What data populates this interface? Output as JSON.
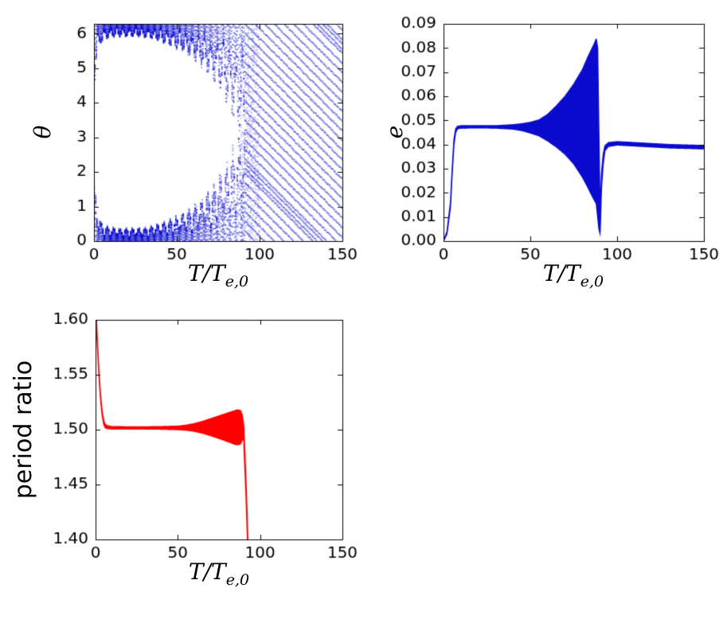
{
  "figure": {
    "background": "#ffffff"
  },
  "chart_data": [
    {
      "id": "theta-vs-time",
      "type": "scatter",
      "xlabel_main": "T/T",
      "xlabel_sub": "e,0",
      "ylabel": "θ",
      "xlim": [
        0,
        150
      ],
      "ylim": [
        0,
        6.2832
      ],
      "xticks": [
        0,
        50,
        100,
        150
      ],
      "xticklabels": [
        "0",
        "50",
        "100",
        "150"
      ],
      "yticks": [
        0,
        1,
        2,
        3,
        4,
        5,
        6
      ],
      "yticklabels": [
        "0",
        "1",
        "2",
        "3",
        "4",
        "5",
        "6"
      ],
      "color": "#0b0bd0",
      "series_note": "resonant angle librates about 0 (mod 2pi): solid bands at 0 and 2pi whose amplitude grows to pi near T=90, then the angle circulates producing a diagonal striped pattern for T>91",
      "libration_envelope": {
        "x": [
          0,
          1,
          2,
          3,
          4,
          6,
          10,
          15,
          20,
          25,
          30,
          35,
          40,
          45,
          50,
          55,
          60,
          65,
          70,
          74,
          78,
          81,
          84,
          86,
          88,
          89.5,
          91
        ],
        "amplitude": [
          1.7,
          1.3,
          0.95,
          0.7,
          0.55,
          0.44,
          0.38,
          0.355,
          0.35,
          0.355,
          0.37,
          0.42,
          0.5,
          0.58,
          0.68,
          0.8,
          0.95,
          1.15,
          1.4,
          1.62,
          1.92,
          2.2,
          2.5,
          2.7,
          2.92,
          3.06,
          3.14
        ]
      },
      "circulation": {
        "start": 91,
        "end": 150,
        "slope_rad_per_T": -0.048,
        "stripe_spacing_rad": 0.28
      }
    },
    {
      "id": "eccentricity-vs-time",
      "type": "line",
      "xlabel_main": "T/T",
      "xlabel_sub": "e,0",
      "ylabel": "e",
      "xlim": [
        0,
        150
      ],
      "ylim": [
        0,
        0.09
      ],
      "xticks": [
        0,
        50,
        100,
        150
      ],
      "xticklabels": [
        "0",
        "50",
        "100",
        "150"
      ],
      "yticks": [
        0,
        0.01,
        0.02,
        0.03,
        0.04,
        0.05,
        0.06,
        0.07,
        0.08,
        0.09
      ],
      "yticklabels": [
        "0.00",
        "0.01",
        "0.02",
        "0.03",
        "0.04",
        "0.05",
        "0.06",
        "0.07",
        "0.08",
        "0.09"
      ],
      "color": "#0b0bd0",
      "series_note": "eccentricity rises to ~0.047 by T=8, oscillation envelope grows to a peak of ~0.084 at T=88, collapses to ~0.005 near T=90, then settles around 0.040 out to T=150",
      "envelope": {
        "x": [
          0,
          2,
          4,
          5,
          6,
          7,
          8,
          10,
          20,
          30,
          40,
          45,
          50,
          55,
          60,
          65,
          70,
          75,
          80,
          83,
          85,
          87,
          88,
          88.8,
          89.5,
          90.2,
          91,
          92,
          93,
          95,
          100,
          110,
          120,
          130,
          140,
          150
        ],
        "upper": [
          0.0,
          0.004,
          0.016,
          0.03,
          0.042,
          0.0465,
          0.0475,
          0.0478,
          0.0478,
          0.0478,
          0.0482,
          0.0486,
          0.0492,
          0.0502,
          0.0525,
          0.056,
          0.06,
          0.065,
          0.071,
          0.076,
          0.079,
          0.082,
          0.0838,
          0.08,
          0.045,
          0.012,
          0.028,
          0.036,
          0.0395,
          0.0408,
          0.0412,
          0.0408,
          0.0404,
          0.04,
          0.0398,
          0.0396
        ],
        "lower": [
          0.0,
          0.003,
          0.014,
          0.028,
          0.04,
          0.045,
          0.0465,
          0.0468,
          0.0469,
          0.0468,
          0.0464,
          0.0458,
          0.0448,
          0.0436,
          0.0415,
          0.039,
          0.036,
          0.032,
          0.0265,
          0.0225,
          0.0195,
          0.0168,
          0.0155,
          0.01,
          0.005,
          0.003,
          0.022,
          0.032,
          0.0375,
          0.0392,
          0.0398,
          0.0394,
          0.039,
          0.0386,
          0.0384,
          0.0382
        ]
      }
    },
    {
      "id": "period-ratio-vs-time",
      "type": "line",
      "xlabel_main": "T/T",
      "xlabel_sub": "e,0",
      "ylabel": "period ratio",
      "xlim": [
        0,
        150
      ],
      "ylim": [
        1.4,
        1.6
      ],
      "xticks": [
        0,
        50,
        100,
        150
      ],
      "xticklabels": [
        "0",
        "50",
        "100",
        "150"
      ],
      "yticks": [
        1.4,
        1.45,
        1.5,
        1.55,
        1.6
      ],
      "yticklabels": [
        "1.40",
        "1.45",
        "1.50",
        "1.55",
        "1.60"
      ],
      "color": "#ff0000",
      "series_note": "period ratio falls from 1.60 to a resonant plateau at ~1.502 by T=6, oscillation envelope widens to ~1.487-1.518 by T=88, then the ratio plunges past 1.40 near T=92",
      "envelope": {
        "x": [
          0,
          1,
          2,
          3,
          4,
          5,
          6,
          8,
          10,
          20,
          30,
          40,
          50,
          55,
          60,
          65,
          70,
          75,
          80,
          84,
          86,
          88,
          89,
          90,
          90.8,
          91.5,
          92,
          92.6
        ],
        "upper": [
          1.62,
          1.585,
          1.555,
          1.532,
          1.517,
          1.508,
          1.5045,
          1.5032,
          1.5028,
          1.5026,
          1.5026,
          1.5028,
          1.5032,
          1.504,
          1.5055,
          1.5075,
          1.51,
          1.5125,
          1.515,
          1.517,
          1.518,
          1.5175,
          1.514,
          1.505,
          1.478,
          1.45,
          1.428,
          1.398
        ],
        "lower": [
          1.6,
          1.58,
          1.55,
          1.528,
          1.513,
          1.5045,
          1.5015,
          1.5008,
          1.5006,
          1.5006,
          1.5006,
          1.5004,
          1.5,
          1.4995,
          1.4985,
          1.4968,
          1.4945,
          1.492,
          1.4893,
          1.487,
          1.4862,
          1.4868,
          1.49,
          1.492,
          1.462,
          1.437,
          1.414,
          1.386
        ]
      }
    }
  ]
}
